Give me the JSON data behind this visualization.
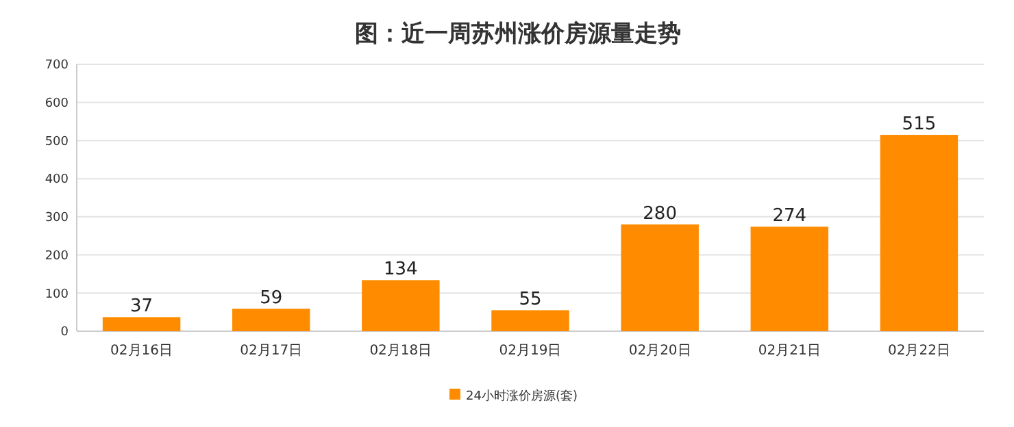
{
  "chart_data": {
    "type": "bar",
    "title": "图：近一周苏州涨价房源量走势",
    "categories": [
      "02月16日",
      "02月17日",
      "02月18日",
      "02月19日",
      "02月20日",
      "02月21日",
      "02月22日"
    ],
    "series": [
      {
        "name": "24小时涨价房源(套)",
        "color": "#ff8c00",
        "values": [
          37,
          59,
          134,
          55,
          280,
          274,
          515
        ]
      }
    ],
    "ylim": [
      0,
      700
    ],
    "yticks": [
      0,
      100,
      200,
      300,
      400,
      500,
      600,
      700
    ],
    "grid": "y",
    "legend": "bottom",
    "data_labels": true
  }
}
